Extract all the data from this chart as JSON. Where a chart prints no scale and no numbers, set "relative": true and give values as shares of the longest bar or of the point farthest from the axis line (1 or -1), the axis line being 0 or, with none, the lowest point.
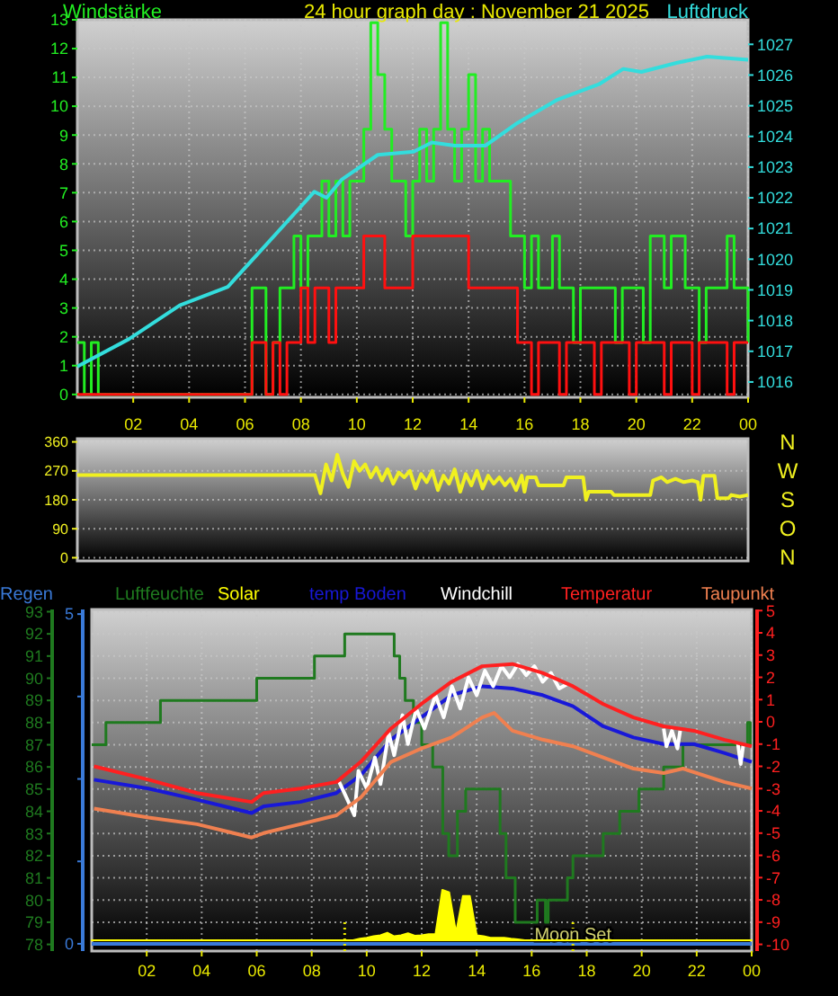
{
  "chart_data": [
    {
      "type": "step",
      "title": "24 hour graph day : November 21 2025",
      "ylabel": "Windstärke",
      "y2label": "Luftdruck",
      "xlim": [
        "2025-11-21T00:00",
        "2025-11-22T00:00"
      ],
      "xticks": [
        {
          "value": "2025-11-21T02:00",
          "label": "02"
        },
        {
          "value": "2025-11-21T04:00",
          "label": "04"
        },
        {
          "value": "2025-11-21T06:00",
          "label": "06"
        },
        {
          "value": "2025-11-21T08:00",
          "label": "08"
        },
        {
          "value": "2025-11-21T10:00",
          "label": "10"
        },
        {
          "value": "2025-11-21T12:00",
          "label": "12"
        },
        {
          "value": "2025-11-21T14:00",
          "label": "14"
        },
        {
          "value": "2025-11-21T16:00",
          "label": "16"
        },
        {
          "value": "2025-11-21T18:00",
          "label": "18"
        },
        {
          "value": "2025-11-21T20:00",
          "label": "20"
        },
        {
          "value": "2025-11-21T22:00",
          "label": "22"
        },
        {
          "value": "2025-11-22T00:00",
          "label": "00"
        }
      ],
      "ylim": [
        -0.1,
        13
      ],
      "yticks": [
        0,
        1,
        2,
        3,
        4,
        5,
        6,
        7,
        8,
        9,
        10,
        11,
        12,
        13
      ],
      "y2lim": [
        1015.5,
        1027.8
      ],
      "y2ticks": [
        1016,
        1017,
        1018,
        1019,
        1020,
        1021,
        1022,
        1023,
        1024,
        1025,
        1026,
        1027
      ],
      "grid": true,
      "x": [
        "2025-11-21T00:00",
        "2025-11-21T00:15",
        "2025-11-21T00:30",
        "2025-11-21T00:45",
        "2025-11-21T01:00",
        "2025-11-21T01:15",
        "2025-11-21T01:30",
        "2025-11-21T01:45",
        "2025-11-21T02:00",
        "2025-11-21T02:15",
        "2025-11-21T02:30",
        "2025-11-21T02:45",
        "2025-11-21T03:00",
        "2025-11-21T03:15",
        "2025-11-21T03:30",
        "2025-11-21T03:45",
        "2025-11-21T04:00",
        "2025-11-21T04:15",
        "2025-11-21T04:30",
        "2025-11-21T04:45",
        "2025-11-21T05:00",
        "2025-11-21T05:15",
        "2025-11-21T05:30",
        "2025-11-21T05:45",
        "2025-11-21T06:00",
        "2025-11-21T06:15",
        "2025-11-21T06:30",
        "2025-11-21T06:45",
        "2025-11-21T07:00",
        "2025-11-21T07:15",
        "2025-11-21T07:30",
        "2025-11-21T07:45",
        "2025-11-21T08:00",
        "2025-11-21T08:15",
        "2025-11-21T08:30",
        "2025-11-21T08:45",
        "2025-11-21T09:00",
        "2025-11-21T09:15",
        "2025-11-21T09:30",
        "2025-11-21T09:45",
        "2025-11-21T10:00",
        "2025-11-21T10:15",
        "2025-11-21T10:30",
        "2025-11-21T10:45",
        "2025-11-21T11:00",
        "2025-11-21T11:15",
        "2025-11-21T11:30",
        "2025-11-21T11:45",
        "2025-11-21T12:00",
        "2025-11-21T12:15",
        "2025-11-21T12:30",
        "2025-11-21T12:45",
        "2025-11-21T13:00",
        "2025-11-21T13:15",
        "2025-11-21T13:30",
        "2025-11-21T13:45",
        "2025-11-21T14:00",
        "2025-11-21T14:15",
        "2025-11-21T14:30",
        "2025-11-21T14:45",
        "2025-11-21T15:00",
        "2025-11-21T15:15",
        "2025-11-21T15:30",
        "2025-11-21T15:45",
        "2025-11-21T16:00",
        "2025-11-21T16:15",
        "2025-11-21T16:30",
        "2025-11-21T16:45",
        "2025-11-21T17:00",
        "2025-11-21T17:15",
        "2025-11-21T17:30",
        "2025-11-21T17:45",
        "2025-11-21T18:00",
        "2025-11-21T18:15",
        "2025-11-21T18:30",
        "2025-11-21T18:45",
        "2025-11-21T19:00",
        "2025-11-21T19:15",
        "2025-11-21T19:30",
        "2025-11-21T19:45",
        "2025-11-21T20:00",
        "2025-11-21T20:15",
        "2025-11-21T20:30",
        "2025-11-21T20:45",
        "2025-11-21T21:00",
        "2025-11-21T21:15",
        "2025-11-21T21:30",
        "2025-11-21T21:45",
        "2025-11-21T22:00",
        "2025-11-21T22:15",
        "2025-11-21T22:30",
        "2025-11-21T22:45",
        "2025-11-21T23:00",
        "2025-11-21T23:15",
        "2025-11-21T23:30",
        "2025-11-21T23:45",
        "2025-11-22T00:00"
      ],
      "series": [
        {
          "color": "#22ee22",
          "values": [
            1.8,
            0,
            1.8,
            0,
            0,
            0,
            0,
            0,
            0,
            0,
            0,
            0,
            0,
            0,
            0,
            0,
            0,
            0,
            0,
            0,
            0,
            0,
            0,
            0,
            0,
            3.7,
            3.7,
            0,
            1.8,
            3.7,
            3.7,
            5.5,
            3.7,
            5.5,
            5.5,
            7.4,
            5.5,
            7.4,
            5.5,
            7.4,
            7.4,
            9.2,
            12.9,
            11.1,
            9.2,
            7.4,
            7.4,
            5.5,
            7.4,
            9.2,
            7.4,
            9.2,
            12.9,
            9.2,
            7.4,
            9.2,
            11.1,
            7.4,
            9.2,
            7.4,
            7.4,
            7.4,
            5.5,
            5.5,
            3.7,
            5.5,
            3.7,
            3.7,
            5.5,
            3.7,
            3.7,
            1.8,
            3.7,
            3.7,
            3.7,
            3.7,
            3.7,
            1.8,
            3.7,
            3.7,
            3.7,
            1.8,
            5.5,
            5.5,
            3.7,
            5.5,
            5.5,
            3.7,
            3.7,
            1.8,
            3.7,
            3.7,
            3.7,
            5.5,
            3.7,
            3.7,
            1.8
          ]
        },
        {
          "color": "#ff1010",
          "values": [
            0,
            0,
            0,
            0,
            0,
            0,
            0,
            0,
            0,
            0,
            0,
            0,
            0,
            0,
            0,
            0,
            0,
            0,
            0,
            0,
            0,
            0,
            0,
            0,
            0,
            1.8,
            1.8,
            0,
            1.8,
            0,
            1.8,
            1.8,
            3.7,
            1.8,
            3.7,
            3.7,
            1.8,
            3.7,
            3.7,
            3.7,
            3.7,
            5.5,
            5.5,
            5.5,
            3.7,
            3.7,
            3.7,
            3.7,
            5.5,
            5.5,
            5.5,
            5.5,
            5.5,
            5.5,
            5.5,
            5.5,
            3.7,
            3.7,
            3.7,
            3.7,
            3.7,
            3.7,
            3.7,
            1.8,
            1.8,
            0,
            1.8,
            1.8,
            1.8,
            0,
            1.8,
            1.8,
            1.8,
            1.8,
            0,
            1.8,
            1.8,
            1.8,
            1.8,
            0,
            1.8,
            1.8,
            1.8,
            1.8,
            0,
            1.8,
            1.8,
            1.8,
            0,
            1.8,
            1.8,
            1.8,
            1.8,
            0,
            1.8,
            1.8,
            1.8
          ]
        },
        {
          "type": "line",
          "axis": "y2",
          "color": "#33dddd",
          "x": [
            "2025-11-21T00:00",
            "2025-11-21T01:51",
            "2025-11-21T03:40",
            "2025-11-21T05:23",
            "2025-11-21T06:53",
            "2025-11-21T08:29",
            "2025-11-21T08:55",
            "2025-11-21T09:28",
            "2025-11-21T10:45",
            "2025-11-21T12:02",
            "2025-11-21T12:41",
            "2025-11-21T13:30",
            "2025-11-21T14:36",
            "2025-11-21T15:41",
            "2025-11-21T17:11",
            "2025-11-21T18:40",
            "2025-11-21T19:32",
            "2025-11-21T20:11",
            "2025-11-21T21:28",
            "2025-11-21T22:32",
            "2025-11-22T00:00"
          ],
          "values": [
            1016.5,
            1017.4,
            1018.5,
            1019.1,
            1020.6,
            1022.2,
            1022.0,
            1022.6,
            1023.4,
            1023.5,
            1023.8,
            1023.7,
            1023.7,
            1024.4,
            1025.2,
            1025.7,
            1026.2,
            1026.1,
            1026.4,
            1026.6,
            1026.5
          ]
        }
      ]
    },
    {
      "type": "line",
      "xlim": [
        "2025-11-21T00:00",
        "2025-11-22T00:00"
      ],
      "ylim": [
        -10,
        370
      ],
      "yticks": [
        0,
        90,
        180,
        270,
        360
      ],
      "annotations": [
        "N",
        "W",
        "S",
        "O",
        "N"
      ],
      "grid": "y",
      "series": [
        {
          "color": "#f0f020",
          "x": [
            "2025-11-21T00:00",
            "2025-11-21T08:30",
            "2025-11-21T08:42",
            "2025-11-21T08:54",
            "2025-11-21T09:06",
            "2025-11-21T09:18",
            "2025-11-21T09:30",
            "2025-11-21T09:42",
            "2025-11-21T09:54",
            "2025-11-21T10:06",
            "2025-11-21T10:18",
            "2025-11-21T10:30",
            "2025-11-21T10:42",
            "2025-11-21T10:54",
            "2025-11-21T11:06",
            "2025-11-21T11:18",
            "2025-11-21T11:30",
            "2025-11-21T11:42",
            "2025-11-21T11:54",
            "2025-11-21T12:06",
            "2025-11-21T12:18",
            "2025-11-21T12:30",
            "2025-11-21T12:42",
            "2025-11-21T12:54",
            "2025-11-21T13:06",
            "2025-11-21T13:18",
            "2025-11-21T13:30",
            "2025-11-21T13:42",
            "2025-11-21T13:54",
            "2025-11-21T14:06",
            "2025-11-21T14:18",
            "2025-11-21T14:30",
            "2025-11-21T14:42",
            "2025-11-21T14:54",
            "2025-11-21T15:06",
            "2025-11-21T15:18",
            "2025-11-21T15:30",
            "2025-11-21T15:42",
            "2025-11-21T15:54",
            "2025-11-21T16:00",
            "2025-11-21T16:06",
            "2025-11-21T16:24",
            "2025-11-21T16:30",
            "2025-11-21T17:24",
            "2025-11-21T17:30",
            "2025-11-21T18:06",
            "2025-11-21T18:12",
            "2025-11-21T18:18",
            "2025-11-21T19:06",
            "2025-11-21T19:12",
            "2025-11-21T20:30",
            "2025-11-21T20:36",
            "2025-11-21T20:54",
            "2025-11-21T21:06",
            "2025-11-21T21:24",
            "2025-11-21T21:42",
            "2025-11-21T22:00",
            "2025-11-21T22:12",
            "2025-11-21T22:18",
            "2025-11-21T22:24",
            "2025-11-21T22:48",
            "2025-11-21T22:54",
            "2025-11-21T23:18",
            "2025-11-21T23:24",
            "2025-11-21T23:42",
            "2025-11-22T00:00"
          ],
          "values": [
            257,
            257,
            200,
            290,
            240,
            320,
            260,
            220,
            300,
            270,
            290,
            250,
            280,
            240,
            275,
            230,
            265,
            250,
            270,
            215,
            260,
            235,
            270,
            210,
            255,
            230,
            275,
            205,
            260,
            225,
            270,
            215,
            255,
            230,
            250,
            225,
            245,
            210,
            255,
            205,
            250,
            250,
            225,
            225,
            250,
            250,
            180,
            205,
            205,
            195,
            195,
            240,
            250,
            235,
            245,
            235,
            240,
            235,
            180,
            255,
            255,
            185,
            185,
            195,
            190,
            195
          ]
        }
      ]
    },
    {
      "type": "line",
      "xlim": [
        "2025-11-21T00:00",
        "2025-11-22T00:00"
      ],
      "xticks": [
        {
          "value": "2025-11-21T02:00",
          "label": "02"
        },
        {
          "value": "2025-11-21T04:00",
          "label": "04"
        },
        {
          "value": "2025-11-21T06:00",
          "label": "06"
        },
        {
          "value": "2025-11-21T08:00",
          "label": "08"
        },
        {
          "value": "2025-11-21T10:00",
          "label": "10"
        },
        {
          "value": "2025-11-21T12:00",
          "label": "12"
        },
        {
          "value": "2025-11-21T14:00",
          "label": "14"
        },
        {
          "value": "2025-11-21T16:00",
          "label": "16"
        },
        {
          "value": "2025-11-21T18:00",
          "label": "18"
        },
        {
          "value": "2025-11-21T20:00",
          "label": "20"
        },
        {
          "value": "2025-11-21T22:00",
          "label": "22"
        },
        {
          "value": "2025-11-22T00:00",
          "label": "00"
        }
      ],
      "ylim": [
        77.7,
        93.1
      ],
      "yticks": [
        78,
        79,
        80,
        81,
        82,
        83,
        84,
        85,
        86,
        87,
        88,
        89,
        90,
        91,
        92,
        93
      ],
      "y2lim": [
        -10.3,
        5.05
      ],
      "y2ticks": [
        -10,
        -9,
        -8,
        -7,
        -6,
        -5,
        -4,
        -3,
        -2,
        -1,
        0,
        1,
        2,
        3,
        4,
        5
      ],
      "y3lim": [
        -0.11,
        5.07
      ],
      "y3ticks": [
        0,
        {
          "value": 1.25,
          "label": null
        },
        {
          "value": 2.5,
          "label": null
        },
        {
          "value": 3.75,
          "label": null
        },
        5
      ],
      "grid": true,
      "legend": "top",
      "ref_lines": [
        {
          "axis": "x",
          "value": "2025-11-21T09:12",
          "color": "#e8e800",
          "line_style": "dotted"
        },
        {
          "axis": "x",
          "value": "2025-11-21T17:30",
          "color": "#e8e800",
          "line_style": "dotted",
          "label": "Moon Set"
        }
      ],
      "series": [
        {
          "name": "Regen",
          "axis": "y3",
          "color": "#3a7ad8",
          "x": [
            "2025-11-21T00:00",
            "2025-11-21T01:00",
            "2025-11-21T02:00",
            "2025-11-21T03:00",
            "2025-11-21T04:00",
            "2025-11-21T05:00",
            "2025-11-21T06:00",
            "2025-11-21T07:00",
            "2025-11-21T08:00",
            "2025-11-21T09:00",
            "2025-11-21T10:00",
            "2025-11-21T11:00",
            "2025-11-21T12:00",
            "2025-11-21T13:00",
            "2025-11-21T14:00",
            "2025-11-21T15:00",
            "2025-11-21T16:00",
            "2025-11-21T17:00",
            "2025-11-21T18:00",
            "2025-11-21T19:00",
            "2025-11-21T20:00",
            "2025-11-21T21:00",
            "2025-11-21T22:00",
            "2025-11-21T23:00",
            "2025-11-22T00:00"
          ],
          "values": [
            0,
            0,
            0,
            0,
            0,
            0,
            0,
            0,
            0,
            0,
            0,
            0,
            0,
            0,
            0,
            0,
            0,
            0,
            0,
            0,
            0,
            0,
            0,
            0,
            0
          ]
        },
        {
          "name": "Luftfeuchte",
          "type": "step",
          "color": "#1f7a1f",
          "x": [
            "2025-11-21T00:00",
            "2025-11-21T00:31",
            "2025-11-21T02:30",
            "2025-11-21T06:00",
            "2025-11-21T08:06",
            "2025-11-21T09:12",
            "2025-11-21T11:00",
            "2025-11-21T11:12",
            "2025-11-21T11:24",
            "2025-11-21T11:42",
            "2025-11-21T12:00",
            "2025-11-21T12:24",
            "2025-11-21T12:46",
            "2025-11-21T12:59",
            "2025-11-21T13:18",
            "2025-11-21T13:36",
            "2025-11-21T14:51",
            "2025-11-21T15:04",
            "2025-11-21T15:24",
            "2025-11-21T16:12",
            "2025-11-21T16:30",
            "2025-11-21T16:36",
            "2025-11-21T17:18",
            "2025-11-21T17:30",
            "2025-11-21T18:36",
            "2025-11-21T19:12",
            "2025-11-21T19:54",
            "2025-11-21T20:48",
            "2025-11-21T21:30",
            "2025-11-21T23:51",
            "2025-11-21T23:57",
            "2025-11-22T00:00"
          ],
          "values": [
            87,
            88,
            89,
            90,
            91,
            92,
            91,
            90,
            89,
            88,
            87,
            86,
            83,
            82,
            84,
            85,
            83,
            81,
            79,
            80,
            79,
            80,
            81,
            82,
            83,
            84,
            85,
            86,
            87,
            88,
            87,
            87
          ]
        },
        {
          "name": "temp Boden",
          "axis": "y2",
          "color": "#1818d8",
          "x": [
            "2025-11-21T00:05",
            "2025-11-21T02:04",
            "2025-11-21T03:50",
            "2025-11-21T05:49",
            "2025-11-21T06:15",
            "2025-11-21T07:35",
            "2025-11-21T08:54",
            "2025-11-21T09:47",
            "2025-11-21T10:53",
            "2025-11-21T11:59",
            "2025-11-21T13:05",
            "2025-11-21T14:12",
            "2025-11-21T15:18",
            "2025-11-21T16:24",
            "2025-11-21T17:30",
            "2025-11-21T18:36",
            "2025-11-21T19:42",
            "2025-11-21T20:48",
            "2025-11-21T21:54",
            "2025-11-21T23:00",
            "2025-11-22T00:00"
          ],
          "values": [
            -2.6,
            -3.0,
            -3.5,
            -4.1,
            -3.8,
            -3.6,
            -3.2,
            -2.4,
            -0.8,
            0.2,
            1.2,
            1.6,
            1.5,
            1.2,
            0.7,
            -0.2,
            -0.7,
            -1.0,
            -1.0,
            -1.4,
            -1.8
          ]
        },
        {
          "name": "Windchill",
          "axis": "y2",
          "color": "#ffffff",
          "x": [
            "2025-11-21T09:00",
            "2025-11-21T09:18",
            "2025-11-21T09:33",
            "2025-11-21T09:42",
            "2025-11-21T10:00",
            "2025-11-21T10:18",
            "2025-11-21T10:30",
            "2025-11-21T10:48",
            "2025-11-21T11:00",
            "2025-11-21T11:18",
            "2025-11-21T11:30",
            "2025-11-21T11:48",
            "2025-11-21T12:06",
            "2025-11-21T12:30",
            "2025-11-21T12:48",
            "2025-11-21T13:06",
            "2025-11-21T13:24",
            "2025-11-21T13:42",
            "2025-11-21T14:00",
            "2025-11-21T14:18",
            "2025-11-21T14:36",
            "2025-11-21T14:54",
            "2025-11-21T15:12",
            "2025-11-21T15:30",
            "2025-11-21T15:48",
            "2025-11-21T16:06",
            "2025-11-21T16:24",
            "2025-11-21T16:42",
            "2025-11-21T17:00",
            "2025-11-21T17:18",
            "2025-11-21T18:00",
            "2025-11-21T20:48",
            "2025-11-21T20:54",
            "2025-11-21T21:06",
            "2025-11-21T21:18",
            "2025-11-21T21:24",
            "2025-11-21T22:00",
            "2025-11-21T23:30",
            "2025-11-21T23:36",
            "2025-11-21T23:42"
          ],
          "values": [
            -2.7,
            -3.5,
            -4.2,
            -2.2,
            -3.0,
            -1.6,
            -2.8,
            -0.5,
            -1.5,
            0.3,
            -1.0,
            0.6,
            -0.3,
            1.2,
            0.2,
            1.6,
            0.6,
            2.0,
            1.2,
            2.3,
            1.6,
            2.5,
            2.0,
            2.6,
            2.1,
            2.5,
            1.8,
            2.2,
            1.5,
            1.7,
            null,
            -0.3,
            -1.1,
            -0.4,
            -1.2,
            -0.4,
            null,
            -1.0,
            -1.9,
            -1.0
          ]
        },
        {
          "name": "Temperatur",
          "axis": "y2",
          "color": "#ff2020",
          "x": [
            "2025-11-21T00:05",
            "2025-11-21T02:04",
            "2025-11-21T03:50",
            "2025-11-21T05:49",
            "2025-11-21T06:15",
            "2025-11-21T07:35",
            "2025-11-21T08:54",
            "2025-11-21T09:47",
            "2025-11-21T10:53",
            "2025-11-21T11:59",
            "2025-11-21T13:05",
            "2025-11-21T14:12",
            "2025-11-21T15:18",
            "2025-11-21T16:24",
            "2025-11-21T17:30",
            "2025-11-21T18:36",
            "2025-11-21T19:42",
            "2025-11-21T20:48",
            "2025-11-21T21:54",
            "2025-11-21T23:00",
            "2025-11-22T00:00"
          ],
          "values": [
            -2.0,
            -2.6,
            -3.2,
            -3.6,
            -3.2,
            -3.0,
            -2.7,
            -1.8,
            -0.3,
            0.8,
            1.8,
            2.5,
            2.6,
            2.2,
            1.6,
            0.8,
            0.2,
            -0.2,
            -0.4,
            -0.8,
            -1.1
          ]
        },
        {
          "name": "Taupunkt",
          "axis": "y2",
          "color": "#f08050",
          "x": [
            "2025-11-21T00:05",
            "2025-11-21T02:04",
            "2025-11-21T03:50",
            "2025-11-21T05:49",
            "2025-11-21T06:15",
            "2025-11-21T07:35",
            "2025-11-21T08:54",
            "2025-11-21T09:47",
            "2025-11-21T10:53",
            "2025-11-21T11:59",
            "2025-11-21T13:05",
            "2025-11-21T14:12",
            "2025-11-21T14:38",
            "2025-11-21T15:18",
            "2025-11-21T16:24",
            "2025-11-21T17:30",
            "2025-11-21T18:36",
            "2025-11-21T19:42",
            "2025-11-21T20:48",
            "2025-11-21T21:30",
            "2025-11-21T23:00",
            "2025-11-22T00:00"
          ],
          "values": [
            -3.9,
            -4.3,
            -4.6,
            -5.2,
            -5.0,
            -4.6,
            -4.2,
            -3.4,
            -1.8,
            -1.2,
            -0.7,
            0.2,
            0.4,
            -0.4,
            -0.8,
            -1.1,
            -1.6,
            -2.1,
            -2.3,
            -2.1,
            -2.7,
            -3.0
          ]
        }
      ]
    },
    {
      "type": "area",
      "relative": true,
      "categories": [
        null,
        null,
        null,
        null,
        null,
        null,
        null,
        null,
        null,
        null,
        null,
        null,
        null,
        null,
        null,
        null,
        null,
        null,
        null,
        null,
        null,
        null,
        null,
        null,
        null,
        null,
        null,
        null,
        null,
        null,
        null,
        null,
        null,
        null,
        null,
        null,
        null,
        null,
        null,
        null,
        null,
        null,
        null,
        null,
        null,
        null,
        null,
        null,
        null,
        null,
        null,
        null,
        null,
        null,
        null,
        null,
        null,
        null,
        null,
        null,
        null,
        null,
        null,
        null,
        null,
        null,
        null,
        null,
        null,
        null,
        null,
        null,
        null,
        null,
        null,
        null,
        null,
        null,
        null,
        null,
        null,
        null,
        null,
        null,
        null,
        null,
        null,
        null,
        null,
        null,
        null,
        null,
        null,
        null,
        null,
        null,
        null
      ],
      "series": [
        {
          "name": "Solar",
          "color": "#ffff00",
          "values": [
            0,
            0,
            0,
            0,
            0,
            0,
            0,
            0,
            0,
            0,
            0,
            0,
            0,
            0,
            0,
            0,
            0,
            0,
            0,
            0,
            0,
            0,
            0,
            0,
            0,
            0,
            0,
            0,
            0,
            0,
            0,
            0,
            0,
            0,
            0,
            0,
            0,
            0,
            0,
            0.03,
            0.05,
            0.08,
            0.1,
            0.15,
            0.08,
            0.1,
            0.14,
            0.09,
            0.1,
            0.12,
            0.12,
            1,
            0.95,
            0.15,
            0.88,
            0.88,
            0.1,
            0.08,
            0.05,
            0.05,
            0.05,
            0.03,
            0.02,
            0,
            0,
            0,
            0,
            0,
            0,
            0,
            0,
            0,
            0,
            0,
            0,
            0,
            0,
            0,
            0,
            0,
            0,
            0,
            0,
            0,
            0,
            0,
            0,
            0,
            0,
            0,
            0,
            0,
            0,
            0,
            0,
            0,
            0
          ]
        }
      ]
    }
  ]
}
